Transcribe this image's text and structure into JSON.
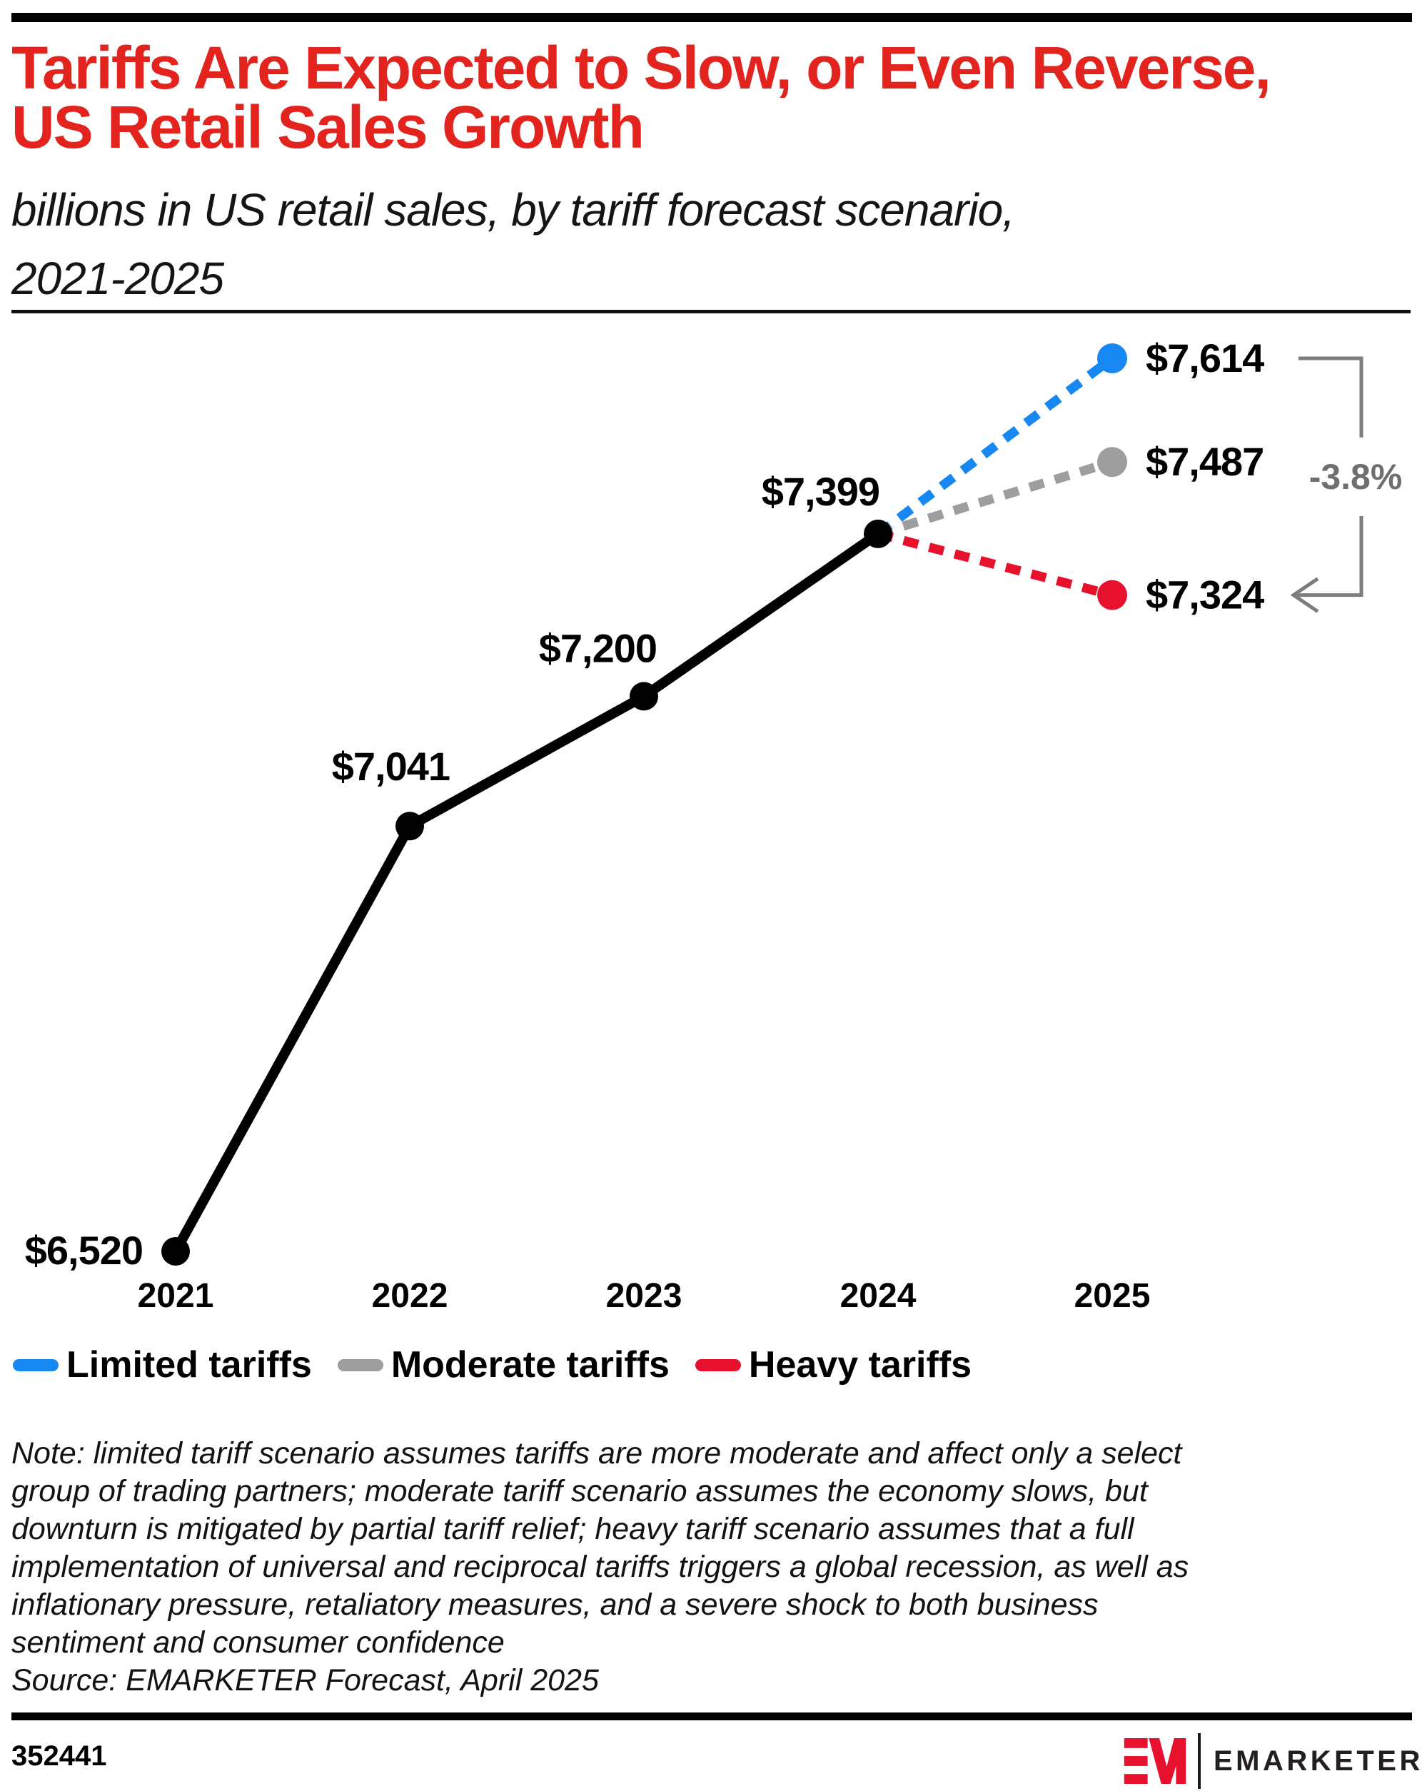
{
  "header": {
    "title_lines": [
      "Tariffs Are Expected to Slow, or Even Reverse,",
      "US Retail Sales Growth"
    ],
    "title_color": "#e3231d",
    "subtitle_lines": [
      "billions in US retail sales, by tariff forecast scenario,",
      "2021-2025"
    ]
  },
  "chart_data": {
    "type": "line",
    "title": "Tariffs Are Expected to Slow, or Even Reverse, US Retail Sales Growth",
    "unit": "billions of US dollars",
    "x_categories": [
      "2021",
      "2022",
      "2023",
      "2024",
      "2025"
    ],
    "grid": "off",
    "y_axis_visible": false,
    "ylim": [
      6400,
      7750
    ],
    "actual_series": {
      "name": "US retail sales",
      "color": "#000000",
      "line_style": "solid",
      "points": [
        {
          "year": 2021,
          "value": 6520,
          "label": "$6,520"
        },
        {
          "year": 2022,
          "value": 7041,
          "label": "$7,041"
        },
        {
          "year": 2023,
          "value": 7200,
          "label": "$7,200"
        },
        {
          "year": 2024,
          "value": 7399,
          "label": "$7,399"
        }
      ]
    },
    "scenario_series": [
      {
        "name": "Limited tariffs",
        "color": "#1787f2",
        "line_style": "dashed",
        "points": [
          {
            "year": 2024,
            "value": 7399
          },
          {
            "year": 2025,
            "value": 7614,
            "label": "$7,614"
          }
        ]
      },
      {
        "name": "Moderate tariffs",
        "color": "#9e9e9e",
        "line_style": "dashed",
        "points": [
          {
            "year": 2024,
            "value": 7399
          },
          {
            "year": 2025,
            "value": 7487,
            "label": "$7,487"
          }
        ]
      },
      {
        "name": "Heavy tariffs",
        "color": "#e8112d",
        "line_style": "dashed",
        "points": [
          {
            "year": 2024,
            "value": 7399
          },
          {
            "year": 2025,
            "value": 7324,
            "label": "$7,324"
          }
        ]
      }
    ],
    "annotation": {
      "label": "-3.8%",
      "from_value": 7614,
      "to_value": 7324,
      "color": "#6f6f6f"
    }
  },
  "legend": [
    {
      "label": "Limited tariffs",
      "color": "#1787f2"
    },
    {
      "label": "Moderate tariffs",
      "color": "#9e9e9e"
    },
    {
      "label": "Heavy tariffs",
      "color": "#e8112d"
    }
  ],
  "note": "Note: limited tariff scenario assumes tariffs are more moderate and affect only a select\ngroup of trading partners; moderate tariff scenario assumes the economy slows, but\ndownturn is mitigated by partial tariff relief; heavy tariff scenario assumes that a full\nimplementation of universal and reciprocal tariffs triggers a global recession, as well as\ninflationary pressure, retaliatory measures, and a severe shock to both business\nsentiment and consumer confidence",
  "source": "Source: EMARKETER Forecast, April 2025",
  "footer": {
    "chart_id": "352441",
    "logo_mark": "EM",
    "logo_text": "EMARKETER",
    "logo_color": "#e8112d"
  }
}
